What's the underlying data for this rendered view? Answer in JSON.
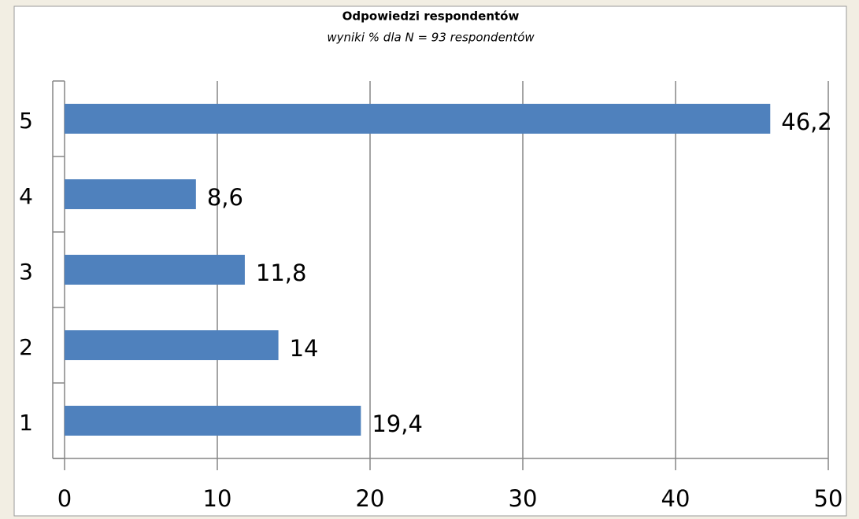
{
  "chart_data": {
    "type": "hbar",
    "title": "Odpowiedzi respondentów",
    "subtitle": "wyniki % dla N = 93 respondentów",
    "categories": [
      "1",
      "2",
      "3",
      "4",
      "5"
    ],
    "values": [
      19.4,
      14,
      11.8,
      8.6,
      46.2
    ],
    "value_labels": [
      "19,4",
      "14",
      "11,8",
      "8,6",
      "46,2"
    ],
    "color": "#4f81bd",
    "xlim": [
      0,
      50
    ],
    "xticks": [
      0,
      10,
      20,
      30,
      40,
      50
    ],
    "grid": true
  }
}
